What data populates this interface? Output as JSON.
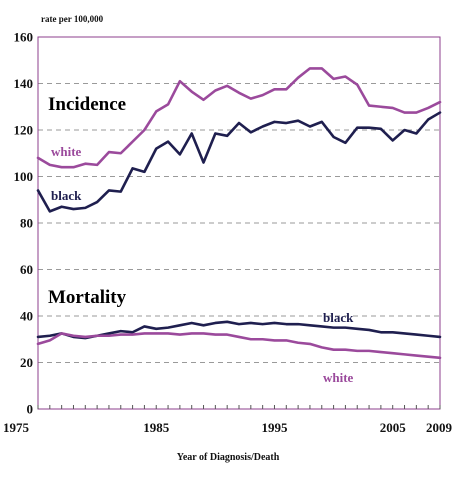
{
  "chart_data": {
    "type": "line",
    "ylabel": "rate per 100,000",
    "xlabel": "Year of Diagnosis/Death",
    "xlim": [
      1975,
      2009
    ],
    "ylim": [
      0,
      160
    ],
    "y_ticks": [
      "0",
      "20",
      "40",
      "60",
      "80",
      "100",
      "120",
      "140",
      "160"
    ],
    "x_ticks": [
      "1975",
      "1985",
      "1995",
      "2005",
      "2009"
    ],
    "grid": "dashed horizontal",
    "annotations": {
      "incidence": "Incidence",
      "mortality": "Mortality"
    },
    "x": [
      1975,
      1976,
      1977,
      1978,
      1979,
      1980,
      1981,
      1982,
      1983,
      1984,
      1985,
      1986,
      1987,
      1988,
      1989,
      1990,
      1991,
      1992,
      1993,
      1994,
      1995,
      1996,
      1997,
      1998,
      1999,
      2000,
      2001,
      2002,
      2003,
      2004,
      2005,
      2006,
      2007,
      2008,
      2009
    ],
    "series": [
      {
        "name": "white",
        "group": "incidence",
        "color": "#9b4a9c",
        "values": [
          108,
          105,
          104,
          104,
          105.5,
          105,
          110.5,
          110,
          115,
          120,
          128,
          131,
          141,
          136.5,
          133,
          137,
          139,
          136,
          133.5,
          135,
          137.5,
          137.5,
          142.5,
          146.5,
          146.5,
          142,
          143,
          139.5,
          130.5,
          130,
          129.5,
          127.5,
          127.5,
          129.5,
          132
        ]
      },
      {
        "name": "black",
        "group": "incidence",
        "color": "#1f1f4f",
        "values": [
          94,
          85,
          87,
          86,
          86.5,
          89,
          94,
          93.5,
          103.5,
          102,
          112,
          115,
          109.5,
          118.5,
          106,
          118.5,
          117.5,
          123,
          119,
          121.5,
          123.5,
          123,
          124,
          121.5,
          123.5,
          117,
          114.5,
          121,
          121,
          120.5,
          115.5,
          120,
          118.5,
          124.5,
          127.5
        ]
      },
      {
        "name": "black",
        "group": "mortality",
        "color": "#1f1f4f",
        "values": [
          31,
          31.5,
          32.5,
          31,
          30.5,
          31.5,
          32.5,
          33.5,
          33,
          35.5,
          34.5,
          35,
          36,
          37,
          36,
          37,
          37.5,
          36.5,
          37,
          36.5,
          37,
          36.5,
          36.5,
          36,
          35.5,
          35,
          35,
          34.5,
          34,
          33,
          33,
          32.5,
          32,
          31.5,
          31
        ]
      },
      {
        "name": "white",
        "group": "mortality",
        "color": "#9b4a9c",
        "values": [
          28,
          29.5,
          32.5,
          31.5,
          31,
          31.5,
          31.5,
          32,
          32,
          32.5,
          32.5,
          32.5,
          32,
          32.5,
          32.5,
          32,
          32,
          31,
          30,
          30,
          29.5,
          29.5,
          28.5,
          28,
          26.5,
          25.5,
          25.5,
          25,
          25,
          24.5,
          24,
          23.5,
          23,
          22.5,
          22
        ]
      }
    ],
    "series_labels": {
      "incidence_white": "white",
      "incidence_black": "black",
      "mortality_black": "black",
      "mortality_white": "white"
    }
  }
}
